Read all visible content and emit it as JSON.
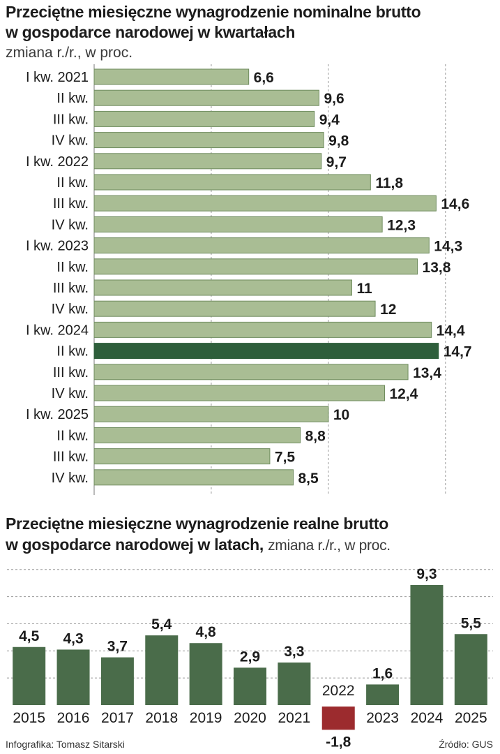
{
  "chart_data": [
    {
      "type": "bar",
      "orientation": "horizontal",
      "title_line1": "Przeciętne miesięczne wynagrodzenie nominalne brutto",
      "title_line2": "w gospodarce narodowej w kwartałach",
      "subtitle": "zmiana r./r., w proc.",
      "categories": [
        "I kw. 2021",
        "II kw.",
        "III kw.",
        "IV kw.",
        "I kw. 2022",
        "II kw.",
        "III kw.",
        "IV kw.",
        "I kw. 2023",
        "II kw.",
        "III kw.",
        "IV kw.",
        "I kw. 2024",
        "II kw.",
        "III kw.",
        "IV kw.",
        "I kw. 2025",
        "II kw.",
        "III kw.",
        "IV kw."
      ],
      "values": [
        6.6,
        9.6,
        9.4,
        9.8,
        9.7,
        11.8,
        14.6,
        12.3,
        14.3,
        13.8,
        11,
        12,
        14.4,
        14.7,
        13.4,
        12.4,
        10,
        8.8,
        7.5,
        8.5
      ],
      "value_labels": [
        "6,6",
        "9,6",
        "9,4",
        "9,8",
        "9,7",
        "11,8",
        "14,6",
        "12,3",
        "14,3",
        "13,8",
        "11",
        "12",
        "14,4",
        "14,7",
        "13,4",
        "12,4",
        "10",
        "8,8",
        "7,5",
        "8,5"
      ],
      "highlight_index": 13,
      "xlim": [
        0,
        17
      ],
      "grid": true,
      "colors": {
        "bar": "#a9bd94",
        "bar_border": "#6f8c5e",
        "highlight": "#2e5e3b"
      }
    },
    {
      "type": "bar",
      "title_line1": "Przeciętne miesięczne wynagrodzenie realne brutto",
      "title_line2": "w gospodarce narodowej w latach,",
      "subtitle": "zmiana r./r., w proc.",
      "categories": [
        "2015",
        "2016",
        "2017",
        "2018",
        "2019",
        "2020",
        "2021",
        "2022",
        "2023",
        "2024",
        "2025"
      ],
      "values": [
        4.5,
        4.3,
        3.7,
        5.4,
        4.8,
        2.9,
        3.3,
        -1.8,
        1.6,
        9.3,
        5.5
      ],
      "value_labels": [
        "4,5",
        "4,3",
        "3,7",
        "5,4",
        "4,8",
        "2,9",
        "3,3",
        "-1,8",
        "1,6",
        "9,3",
        "5,5"
      ],
      "ylim": [
        -1.8,
        11
      ],
      "grid": true,
      "colors": {
        "bar": "#4a6c4a",
        "negative": "#9c2b2e"
      }
    }
  ],
  "footer": {
    "left": "Infografika: Tomasz Sitarski",
    "right": "Źródło: GUS"
  }
}
